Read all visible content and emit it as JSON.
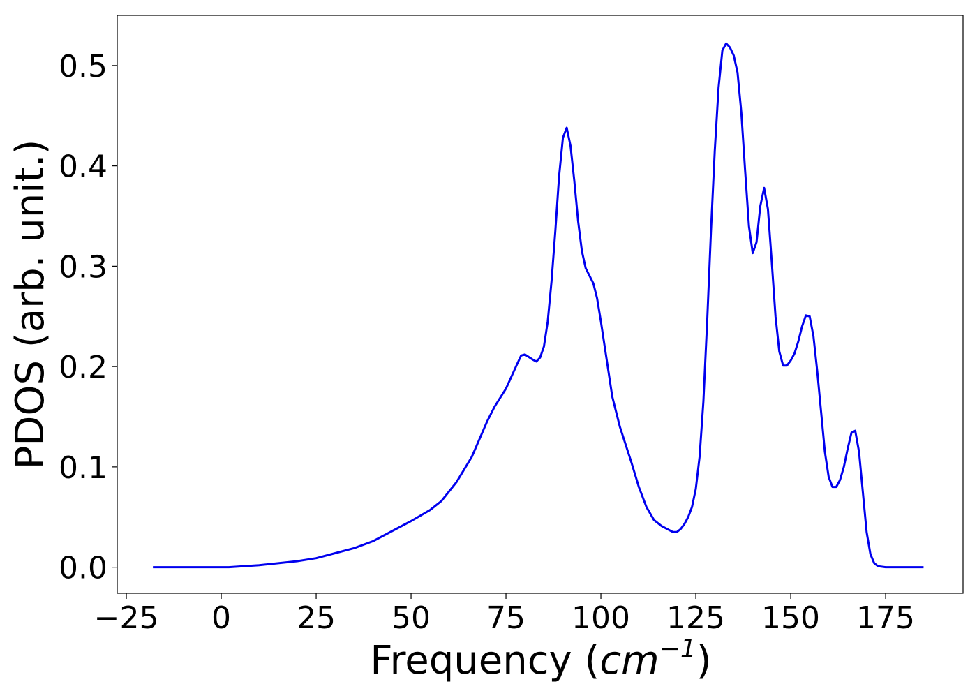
{
  "chart_data": {
    "type": "line",
    "x_label": {
      "text": "Frequency (",
      "math": "cm",
      "exponent": "−1",
      "close": ")"
    },
    "y_label": "PDOS (arb. unit.)",
    "color": "#0000ee",
    "x": [
      -18,
      0,
      2,
      10,
      20,
      25,
      30,
      35,
      40,
      45,
      50,
      55,
      58,
      62,
      66,
      70,
      72,
      75,
      78,
      79,
      80,
      82,
      83,
      84,
      85,
      86,
      87,
      88,
      89,
      90,
      91,
      92,
      93,
      94,
      95,
      96,
      98,
      99,
      100,
      102,
      103,
      105,
      108,
      110,
      112,
      114,
      116,
      118,
      119,
      120,
      121,
      122,
      123,
      124,
      125,
      126,
      127,
      128,
      129,
      130,
      131,
      132,
      133,
      134,
      135,
      136,
      137,
      138,
      139,
      140,
      141,
      142,
      143,
      144,
      145,
      146,
      147,
      148,
      149,
      150,
      151,
      152,
      153,
      154,
      155,
      156,
      157,
      158,
      159,
      160,
      161,
      162,
      163,
      164,
      165,
      166,
      167,
      168,
      169,
      170,
      171,
      172,
      173,
      175,
      185
    ],
    "values": [
      0,
      0,
      0,
      0.002,
      0.006,
      0.009,
      0.014,
      0.019,
      0.026,
      0.036,
      0.046,
      0.057,
      0.066,
      0.085,
      0.11,
      0.145,
      0.16,
      0.178,
      0.203,
      0.211,
      0.212,
      0.207,
      0.205,
      0.209,
      0.22,
      0.245,
      0.285,
      0.335,
      0.39,
      0.428,
      0.438,
      0.42,
      0.385,
      0.345,
      0.315,
      0.298,
      0.283,
      0.268,
      0.245,
      0.195,
      0.17,
      0.14,
      0.105,
      0.08,
      0.06,
      0.047,
      0.041,
      0.037,
      0.035,
      0.035,
      0.038,
      0.043,
      0.05,
      0.06,
      0.078,
      0.11,
      0.165,
      0.245,
      0.335,
      0.415,
      0.478,
      0.515,
      0.522,
      0.518,
      0.51,
      0.493,
      0.453,
      0.395,
      0.34,
      0.313,
      0.324,
      0.36,
      0.378,
      0.357,
      0.305,
      0.25,
      0.215,
      0.201,
      0.201,
      0.206,
      0.213,
      0.225,
      0.24,
      0.251,
      0.25,
      0.23,
      0.195,
      0.155,
      0.115,
      0.09,
      0.08,
      0.08,
      0.087,
      0.1,
      0.118,
      0.134,
      0.136,
      0.115,
      0.075,
      0.035,
      0.013,
      0.004,
      0.001,
      0,
      0
    ],
    "xlim": [
      -27.4,
      195.4
    ],
    "ylim": [
      -0.026,
      0.55
    ],
    "xticks": [
      {
        "value": -25,
        "label": "−25"
      },
      0,
      25,
      50,
      75,
      100,
      125,
      150,
      175
    ],
    "yticks": [
      {
        "value": 0,
        "label": "0.0"
      },
      0.1,
      0.2,
      0.3,
      0.4,
      0.5
    ]
  }
}
